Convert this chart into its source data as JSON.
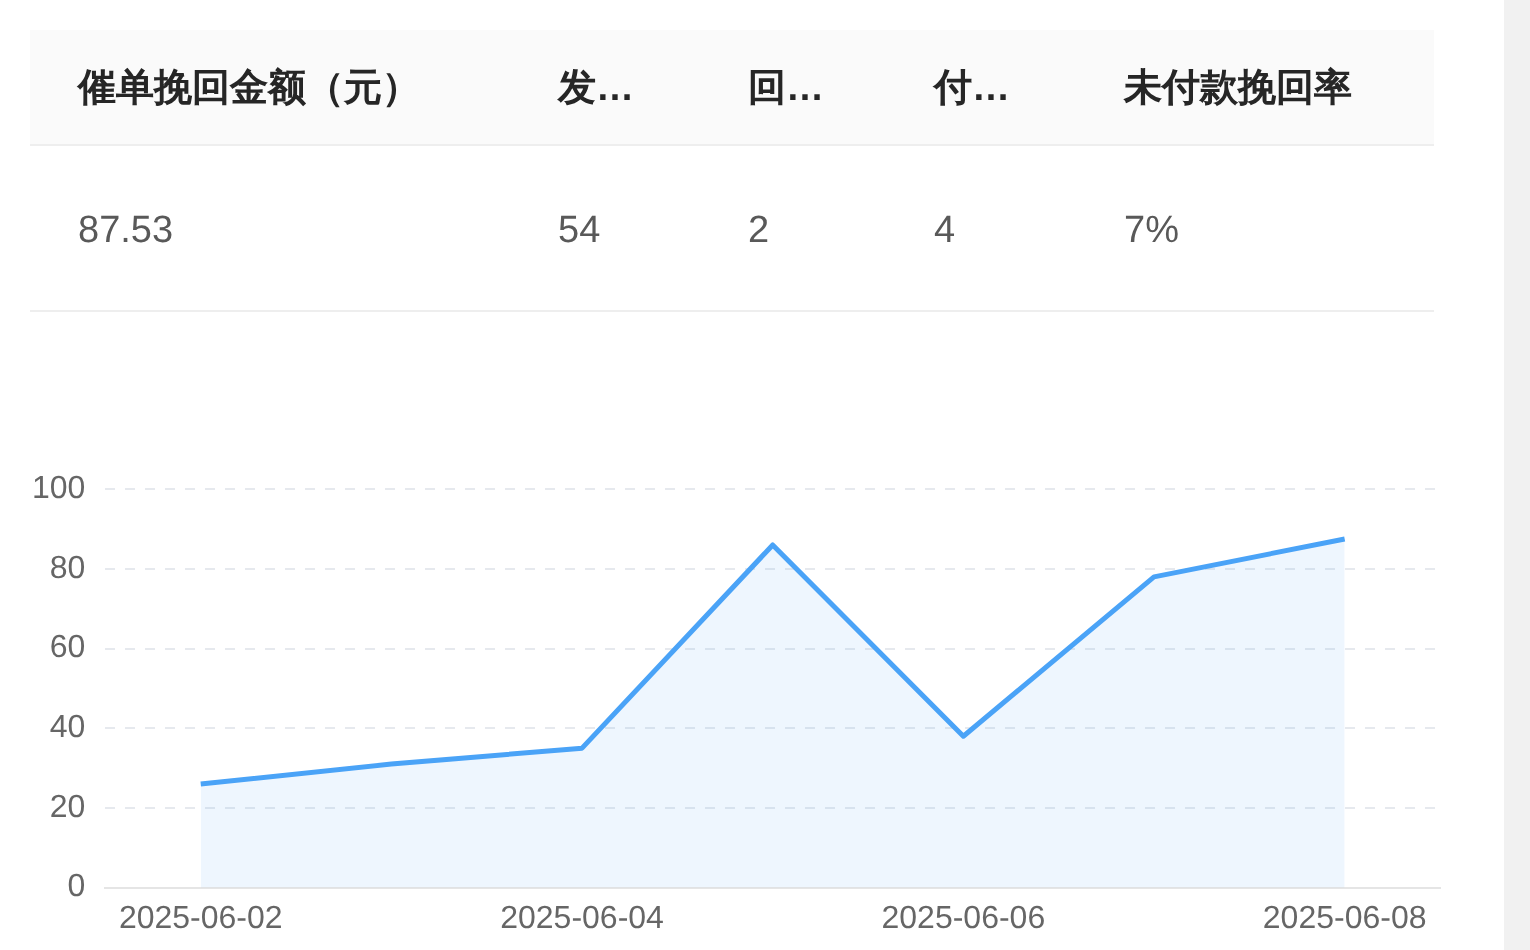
{
  "chart_data": [
    {
      "type": "other",
      "categories": [
        "催单挽回金额（元）",
        "发…",
        "回…",
        "付…",
        "未付款挽回率"
      ],
      "annotations": [
        "87.53",
        "54",
        "2",
        "4",
        "7%"
      ]
    },
    {
      "type": "area",
      "categories": [
        "2025-06-02",
        null,
        "2025-06-04",
        null,
        "2025-06-06",
        null,
        "2025-06-08"
      ],
      "series": [
        {
          "color": "#4aa3f7",
          "values": [
            26,
            31,
            35,
            86,
            38,
            78,
            87.5
          ]
        }
      ],
      "ylim": [
        0,
        100
      ],
      "yticks": [
        0,
        20,
        40,
        60,
        80,
        100
      ],
      "grid": "y",
      "legend": false,
      "marker": "none"
    }
  ]
}
